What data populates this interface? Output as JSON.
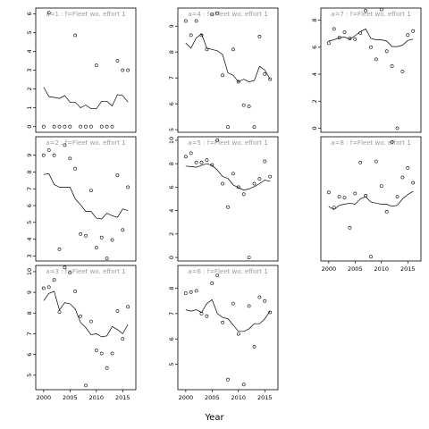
{
  "chart_data": {
    "type": "scatter",
    "xlabel": "Year",
    "xlim": [
      1998.5,
      2017.5
    ],
    "xticks": [
      "2000",
      "2005",
      "2010",
      "2015"
    ],
    "panels": [
      {
        "title": "a=1 : f=Fleet wo. effort 1",
        "ylim": [
          -0.3,
          6.3
        ],
        "yticks": [
          "0",
          "1",
          "2",
          "3",
          "4",
          "5",
          "6"
        ],
        "obs_x": [
          2000,
          2001,
          2002,
          2003,
          2004,
          2005,
          2006,
          2007,
          2008,
          2009,
          2010,
          2011,
          2012,
          2013,
          2014,
          2015,
          2016
        ],
        "obs_y": [
          0,
          6.05,
          0,
          0,
          0,
          0,
          4.85,
          0,
          0,
          0,
          3.25,
          0,
          0,
          0,
          3.5,
          3,
          3
        ],
        "fit_x": [
          2000,
          2001,
          2002,
          2003,
          2004,
          2005,
          2006,
          2007,
          2008,
          2009,
          2010,
          2011,
          2012,
          2013,
          2014,
          2015,
          2016
        ],
        "fit_y": [
          2.1,
          1.6,
          1.55,
          1.5,
          1.65,
          1.3,
          1.3,
          1.0,
          1.15,
          0.95,
          0.95,
          1.35,
          1.35,
          1.1,
          1.7,
          1.65,
          1.3
        ]
      },
      {
        "title": "a=2 : f=Fleet wo. effort 1",
        "ylim": [
          2.7,
          10.1
        ],
        "yticks": [
          "3",
          "4",
          "5",
          "6",
          "7",
          "8",
          "9"
        ],
        "obs_x": [
          2000,
          2001,
          2002,
          2003,
          2004,
          2005,
          2006,
          2007,
          2008,
          2009,
          2010,
          2011,
          2012,
          2013,
          2014,
          2015,
          2016
        ],
        "obs_y": [
          9.0,
          9.3,
          9.0,
          3.4,
          9.6,
          8.8,
          8.2,
          4.3,
          4.2,
          6.9,
          3.5,
          4.1,
          2.85,
          3.95,
          7.8,
          4.55,
          7.1
        ],
        "fit_x": [
          2000,
          2001,
          2002,
          2003,
          2004,
          2005,
          2006,
          2007,
          2008,
          2009,
          2010,
          2011,
          2012,
          2013,
          2014,
          2015,
          2016
        ],
        "fit_y": [
          7.85,
          7.9,
          7.25,
          7.1,
          7.1,
          7.1,
          6.4,
          6.05,
          5.65,
          5.65,
          5.25,
          5.2,
          5.55,
          5.4,
          5.3,
          5.8,
          5.7
        ]
      },
      {
        "title": "a=3 : f=Fleet wo. effort 1",
        "ylim": [
          4.3,
          10.3
        ],
        "yticks": [
          "5",
          "6",
          "7",
          "8",
          "9",
          "10"
        ],
        "obs_x": [
          2000,
          2001,
          2002,
          2003,
          2004,
          2005,
          2006,
          2007,
          2008,
          2009,
          2010,
          2011,
          2012,
          2013,
          2014,
          2015,
          2016
        ],
        "obs_y": [
          9.2,
          9.25,
          9.6,
          8.05,
          10.2,
          9.95,
          9.05,
          7.85,
          4.5,
          7.6,
          6.2,
          6.05,
          5.35,
          6.05,
          8.1,
          6.75,
          8.3
        ],
        "fit_x": [
          2000,
          2001,
          2002,
          2003,
          2004,
          2005,
          2006,
          2007,
          2008,
          2009,
          2010,
          2011,
          2012,
          2013,
          2014,
          2015,
          2016
        ],
        "fit_y": [
          8.6,
          8.95,
          9.05,
          8.15,
          8.5,
          8.45,
          8.2,
          7.55,
          7.3,
          6.95,
          7.0,
          6.85,
          6.9,
          7.35,
          7.2,
          7.0,
          7.45
        ]
      },
      {
        "title": "a=4 : f=Fleet wo. effort 1",
        "ylim": [
          4.9,
          9.7
        ],
        "yticks": [
          "5",
          "6",
          "7",
          "8",
          "9"
        ],
        "obs_x": [
          2000,
          2001,
          2002,
          2003,
          2004,
          2005,
          2006,
          2007,
          2008,
          2009,
          2010,
          2011,
          2012,
          2013,
          2014,
          2015,
          2016
        ],
        "obs_y": [
          9.2,
          8.65,
          9.2,
          8.65,
          8.1,
          9.45,
          9.5,
          7.1,
          5.1,
          8.1,
          6.85,
          5.95,
          5.9,
          5.1,
          8.6,
          7.15,
          6.95
        ],
        "fit_x": [
          2000,
          2001,
          2002,
          2003,
          2004,
          2005,
          2006,
          2007,
          2008,
          2009,
          2010,
          2011,
          2012,
          2013,
          2014,
          2015,
          2016
        ],
        "fit_y": [
          8.35,
          8.15,
          8.55,
          8.7,
          8.15,
          8.1,
          8.05,
          7.9,
          7.2,
          7.1,
          6.85,
          6.95,
          6.85,
          6.9,
          7.45,
          7.3,
          6.95
        ]
      },
      {
        "title": "a=5 : f=Fleet wo. effort 1",
        "ylim": [
          -0.3,
          10.3
        ],
        "yticks": [
          "0",
          "2",
          "4",
          "6",
          "8",
          "10"
        ],
        "obs_x": [
          2000,
          2001,
          2002,
          2003,
          2004,
          2005,
          2006,
          2007,
          2008,
          2009,
          2010,
          2011,
          2012,
          2013,
          2014,
          2015,
          2016
        ],
        "obs_y": [
          8.6,
          8.9,
          8.1,
          8.1,
          8.3,
          7.9,
          10.0,
          6.3,
          4.3,
          7.15,
          6.0,
          5.4,
          0,
          6.3,
          6.7,
          8.2,
          6.9
        ],
        "fit_x": [
          2000,
          2001,
          2002,
          2003,
          2004,
          2005,
          2006,
          2007,
          2008,
          2009,
          2010,
          2011,
          2012,
          2013,
          2014,
          2015,
          2016
        ],
        "fit_y": [
          7.8,
          7.75,
          7.7,
          7.85,
          8.0,
          7.85,
          7.45,
          6.9,
          6.75,
          6.2,
          5.95,
          5.75,
          5.85,
          6.05,
          6.3,
          6.6,
          6.5
        ]
      },
      {
        "title": "a=6 : f=Fleet wo. effort 1",
        "ylim": [
          4.0,
          8.9
        ],
        "yticks": [
          "5",
          "6",
          "7",
          "8"
        ],
        "obs_x": [
          2000,
          2001,
          2002,
          2003,
          2004,
          2005,
          2006,
          2007,
          2008,
          2009,
          2010,
          2011,
          2012,
          2013,
          2014,
          2015,
          2016
        ],
        "obs_y": [
          7.8,
          7.85,
          7.9,
          7.0,
          6.9,
          8.2,
          8.5,
          6.65,
          4.4,
          7.4,
          6.2,
          4.2,
          7.3,
          5.7,
          7.65,
          7.5,
          7.05
        ],
        "fit_x": [
          2000,
          2001,
          2002,
          2003,
          2004,
          2005,
          2006,
          2007,
          2008,
          2009,
          2010,
          2011,
          2012,
          2013,
          2014,
          2015,
          2016
        ],
        "fit_y": [
          7.15,
          7.1,
          7.15,
          7.05,
          7.4,
          7.55,
          7.0,
          6.85,
          6.8,
          6.55,
          6.3,
          6.3,
          6.4,
          6.6,
          6.6,
          6.8,
          7.1
        ]
      },
      {
        "title": "a=7 : f=Fleet wo. effort 1",
        "ylim": [
          -0.3,
          8.9
        ],
        "yticks": [
          "0",
          "2",
          "4",
          "6",
          "8"
        ],
        "obs_x": [
          2000,
          2001,
          2002,
          2003,
          2004,
          2005,
          2006,
          2007,
          2008,
          2009,
          2010,
          2011,
          2012,
          2013,
          2014,
          2015,
          2016
        ],
        "obs_y": [
          6.3,
          7.35,
          6.7,
          7.1,
          6.65,
          6.6,
          7.05,
          8.7,
          6.0,
          5.1,
          8.8,
          5.7,
          4.6,
          0,
          4.2,
          6.9,
          7.2
        ],
        "fit_x": [
          2000,
          2001,
          2002,
          2003,
          2004,
          2005,
          2006,
          2007,
          2008,
          2009,
          2010,
          2011,
          2012,
          2013,
          2014,
          2015,
          2016
        ],
        "fit_y": [
          6.45,
          6.55,
          6.7,
          6.75,
          6.6,
          6.85,
          7.15,
          7.35,
          6.65,
          6.55,
          6.55,
          6.45,
          6.05,
          6.05,
          6.15,
          6.5,
          6.6
        ]
      },
      {
        "title": "a=8 : f=Fleet wo. effort 1",
        "ylim": [
          3.4,
          9.2
        ],
        "yticks": [],
        "obs_x": [
          2000,
          2001,
          2002,
          2003,
          2004,
          2005,
          2006,
          2007,
          2008,
          2009,
          2010,
          2011,
          2012,
          2013,
          2014,
          2015,
          2016
        ],
        "obs_y": [
          6.6,
          5.9,
          6.4,
          6.35,
          4.95,
          6.55,
          8.0,
          6.45,
          3.6,
          8.05,
          6.9,
          5.7,
          8.95,
          6.4,
          7.3,
          7.75,
          7.05
        ],
        "fit_x": [
          2000,
          2001,
          2002,
          2003,
          2004,
          2005,
          2006,
          2007,
          2008,
          2009,
          2010,
          2011,
          2012,
          2013,
          2014,
          2015,
          2016
        ],
        "fit_y": [
          5.95,
          5.8,
          6.0,
          6.05,
          6.1,
          6.05,
          6.3,
          6.4,
          6.15,
          6.1,
          6.05,
          6.05,
          5.95,
          6.0,
          6.3,
          6.5,
          6.65
        ]
      }
    ]
  }
}
